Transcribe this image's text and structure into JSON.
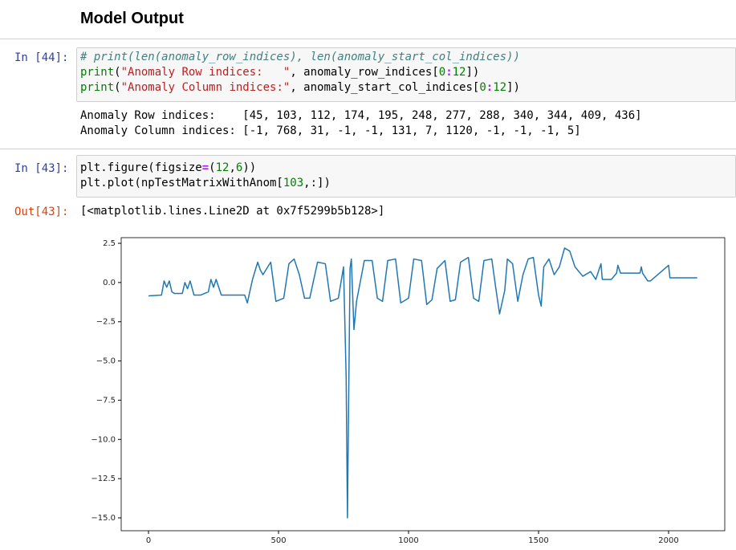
{
  "header": {
    "title": "Model Output"
  },
  "cells": [
    {
      "prompt": "In [44]:",
      "code": [
        [
          "# print(len(anomaly_row_indices), len(anomaly_start_col_indices))"
        ],
        [
          "print",
          "(",
          "\"Anomaly Row indices:   \"",
          ", anomaly_row_indices[",
          "0",
          ":",
          "12",
          "])"
        ],
        [
          "print",
          "(",
          "\"Anomaly Column indices:\"",
          ", anomaly_start_col_indices[",
          "0",
          ":",
          "12",
          "])"
        ]
      ],
      "output": [
        "Anomaly Row indices:    [45, 103, 112, 174, 195, 248, 277, 288, 340, 344, 409, 436]",
        "Anomaly Column indices: [-1, 768, 31, -1, -1, 131, 7, 1120, -1, -1, -1, 5]"
      ]
    },
    {
      "prompt": "In [43]:",
      "code": [
        [
          "plt.figure(figsize",
          "=",
          "(",
          "12",
          ",",
          "6",
          "))"
        ],
        [
          "plt.plot(npTestMatrixWithAnom[",
          "103",
          ",:])"
        ]
      ],
      "out_prompt": "Out[43]:",
      "output": [
        "[<matplotlib.lines.Line2D at 0x7f5299b5b128>]"
      ]
    }
  ],
  "chart_data": {
    "type": "line",
    "x": [
      0,
      50,
      60,
      70,
      80,
      90,
      100,
      130,
      140,
      150,
      160,
      175,
      200,
      230,
      240,
      250,
      260,
      280,
      300,
      370,
      380,
      400,
      420,
      430,
      440,
      470,
      490,
      520,
      540,
      560,
      580,
      600,
      620,
      650,
      680,
      700,
      730,
      750,
      760,
      765,
      770,
      775,
      780,
      790,
      800,
      830,
      860,
      880,
      900,
      920,
      950,
      970,
      1000,
      1020,
      1050,
      1070,
      1090,
      1110,
      1140,
      1160,
      1180,
      1200,
      1230,
      1250,
      1270,
      1290,
      1320,
      1335,
      1350,
      1370,
      1380,
      1400,
      1420,
      1440,
      1460,
      1480,
      1500,
      1510,
      1520,
      1540,
      1560,
      1580,
      1600,
      1620,
      1640,
      1670,
      1700,
      1720,
      1740,
      1745,
      1780,
      1800,
      1805,
      1815,
      1890,
      1895,
      1900,
      1920,
      1930,
      2000,
      2005,
      2110
    ],
    "series": [
      {
        "color": "#1f77b4",
        "values": [
          -0.85,
          -0.8,
          0.1,
          -0.3,
          0.1,
          -0.6,
          -0.7,
          -0.7,
          0.0,
          -0.4,
          0.1,
          -0.8,
          -0.8,
          -0.6,
          0.2,
          -0.3,
          0.2,
          -0.8,
          -0.8,
          -0.8,
          -1.3,
          0.2,
          1.3,
          0.8,
          0.5,
          1.3,
          -1.2,
          -1.0,
          1.2,
          1.5,
          0.5,
          -1.0,
          -1.0,
          1.3,
          1.2,
          -1.2,
          -1.0,
          1.0,
          -6.0,
          -15.0,
          -7.0,
          0.9,
          1.5,
          -3.0,
          -1.2,
          1.4,
          1.4,
          -1.0,
          -1.2,
          1.4,
          1.5,
          -1.3,
          -1.0,
          1.5,
          1.4,
          -1.4,
          -1.1,
          0.9,
          1.4,
          -1.2,
          -1.1,
          1.3,
          1.6,
          -1.0,
          -1.2,
          1.4,
          1.5,
          -0.3,
          -2.0,
          -0.5,
          1.5,
          1.2,
          -1.2,
          0.5,
          1.5,
          1.6,
          -0.8,
          -1.5,
          1.0,
          1.5,
          0.5,
          1.0,
          2.2,
          2.0,
          1.0,
          0.4,
          0.7,
          0.2,
          1.2,
          0.2,
          0.2,
          0.6,
          1.1,
          0.6,
          0.6,
          1.0,
          0.6,
          0.1,
          0.1,
          1.1,
          0.3,
          0.3
        ]
      }
    ],
    "xlim": [
      -105,
      2216
    ],
    "ylim": [
      -15.82,
      2.86
    ],
    "xticks": [
      0,
      500,
      1000,
      1500,
      2000
    ],
    "yticks": [
      2.5,
      {
        "value": 0,
        "label": "0.0"
      },
      {
        "value": -2.5,
        "label": "−2.5"
      },
      {
        "value": -5,
        "label": "−5.0"
      },
      {
        "value": -7.5,
        "label": "−7.5"
      },
      {
        "value": -10,
        "label": "−10.0"
      },
      {
        "value": -12.5,
        "label": "−12.5"
      },
      {
        "value": -15,
        "label": "−15.0"
      }
    ]
  }
}
